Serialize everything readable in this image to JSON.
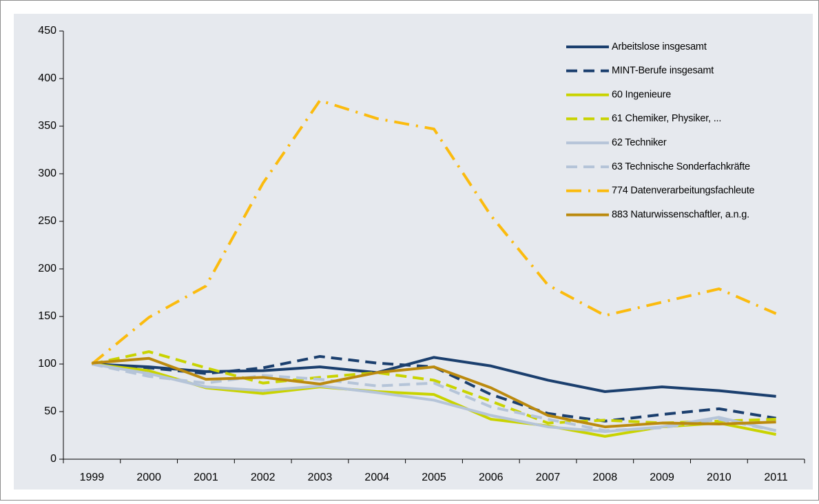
{
  "chart_data": {
    "type": "line",
    "categories": [
      "1999",
      "2000",
      "2001",
      "2002",
      "2003",
      "2004",
      "2005",
      "2006",
      "2007",
      "2008",
      "2009",
      "2010",
      "2011"
    ],
    "ylim": [
      0,
      450
    ],
    "yticks": [
      0,
      50,
      100,
      150,
      200,
      250,
      300,
      350,
      400,
      450
    ],
    "grid": false,
    "legend": "upper right",
    "series": [
      {
        "name": "Arbeitslose insgesamt",
        "color": "#1b3f6e",
        "dash": "solid",
        "values": [
          100,
          97,
          92,
          93,
          97,
          91,
          107,
          98,
          83,
          71,
          76,
          72,
          66
        ]
      },
      {
        "name": "MINT-Berufe insgesamt",
        "color": "#1b3f6e",
        "dash": "dashed",
        "values": [
          100,
          96,
          90,
          96,
          108,
          101,
          97,
          68,
          48,
          40,
          47,
          53,
          43
        ]
      },
      {
        "name": "60 Ingenieure",
        "color": "#c9d300",
        "dash": "solid",
        "values": [
          100,
          93,
          75,
          69,
          76,
          71,
          68,
          42,
          35,
          24,
          34,
          38,
          26
        ]
      },
      {
        "name": "61 Chemiker, Physiker, ...",
        "color": "#c9d300",
        "dash": "dashed",
        "values": [
          100,
          113,
          96,
          80,
          86,
          91,
          83,
          61,
          38,
          41,
          38,
          40,
          42
        ]
      },
      {
        "name": "62 Techniker",
        "color": "#b5c4d8",
        "dash": "solid",
        "values": [
          100,
          90,
          76,
          72,
          77,
          70,
          62,
          46,
          34,
          29,
          34,
          44,
          30
        ]
      },
      {
        "name": "63 Technische Sonderfachkräfte",
        "color": "#b5c4d8",
        "dash": "dashed",
        "values": [
          100,
          87,
          80,
          88,
          84,
          77,
          80,
          55,
          42,
          30,
          33,
          42,
          30
        ]
      },
      {
        "name": "774 Datenverarbeitungsfachleute",
        "color": "#fbbb0e",
        "dash": "dashdot",
        "values": [
          100,
          149,
          182,
          290,
          377,
          358,
          347,
          256,
          183,
          151,
          165,
          179,
          153
        ]
      },
      {
        "name": "883 Naturwissenschaftler, a.n.g.",
        "color": "#bb8a0e",
        "dash": "solid",
        "values": [
          101,
          106,
          84,
          86,
          79,
          91,
          97,
          75,
          46,
          34,
          38,
          37,
          39
        ]
      }
    ]
  }
}
